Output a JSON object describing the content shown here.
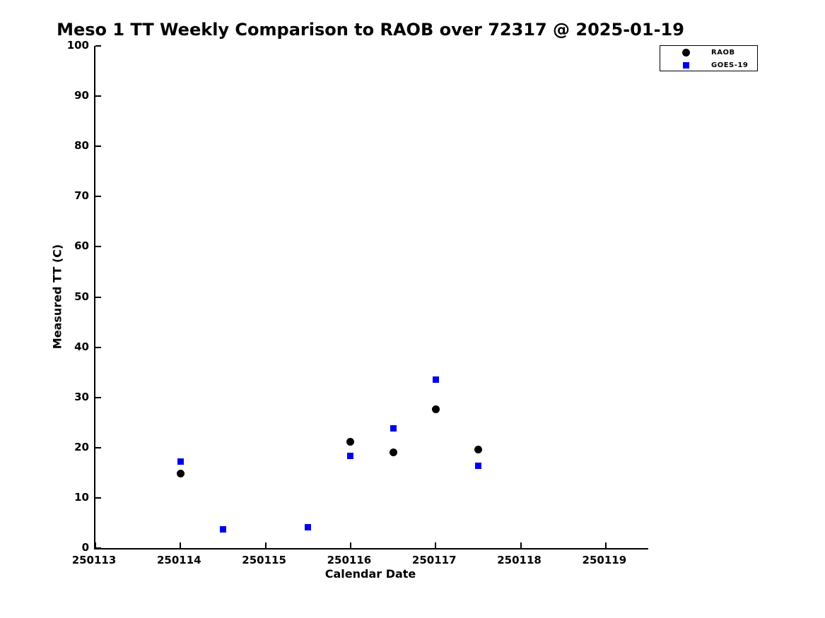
{
  "chart_data": {
    "type": "scatter",
    "title": "Meso 1 TT Weekly Comparison to RAOB over 72317 @ 2025-01-19",
    "xlabel": "Calendar Date",
    "ylabel": "Measured TT (C)",
    "xlim": [
      250113,
      250119.5
    ],
    "ylim": [
      0,
      100
    ],
    "x_ticks": [
      250113,
      250114,
      250115,
      250116,
      250117,
      250118,
      250119
    ],
    "y_ticks": [
      0,
      10,
      20,
      30,
      40,
      50,
      60,
      70,
      80,
      90,
      100
    ],
    "grid": false,
    "legend_position": "top-right-outside",
    "series": [
      {
        "name": "RAOB",
        "marker": "circle",
        "color": "#000000",
        "marker_size": 11,
        "points": [
          [
            250114,
            14.8
          ],
          [
            250116,
            21.2
          ],
          [
            250116.5,
            19.0
          ],
          [
            250117,
            27.6
          ],
          [
            250117.5,
            19.6
          ]
        ]
      },
      {
        "name": "GOES-19",
        "marker": "square",
        "color": "#0000ee",
        "marker_size": 9,
        "points": [
          [
            250114,
            17.2
          ],
          [
            250114.5,
            3.7
          ],
          [
            250115.5,
            4.1
          ],
          [
            250116,
            18.4
          ],
          [
            250116.5,
            23.9
          ],
          [
            250117,
            33.6
          ],
          [
            250117.5,
            16.4
          ]
        ]
      }
    ]
  }
}
